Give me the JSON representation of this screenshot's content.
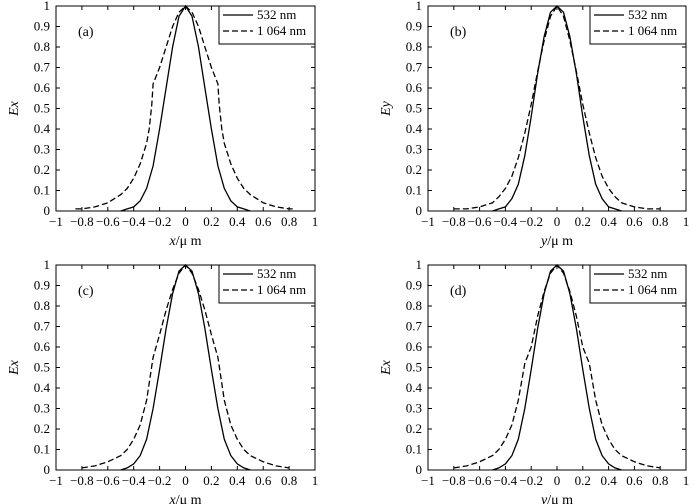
{
  "chart_data": [
    {
      "type": "line",
      "panel_label": "(a)",
      "xlabel_var": "x",
      "xlabel_unit": "/μ m",
      "ylabel": "Ex",
      "xlim": [
        -1,
        1
      ],
      "ylim": [
        0,
        1
      ],
      "xticks": [
        "−1",
        "−0.8",
        "−0.6",
        "−0.4",
        "−0.2",
        "0",
        "0.2",
        "0.4",
        "0.6",
        "0.8",
        "1"
      ],
      "yticks": [
        "0",
        "0.1",
        "0.2",
        "0.3",
        "0.4",
        "0.5",
        "0.6",
        "0.7",
        "0.8",
        "0.9",
        "1"
      ],
      "grid": false,
      "legend_position": "top-right",
      "series": [
        {
          "name": "532 nm",
          "style": "solid",
          "x": [
            -0.5,
            -0.45,
            -0.4,
            -0.35,
            -0.3,
            -0.25,
            -0.2,
            -0.15,
            -0.1,
            -0.05,
            0,
            0.05,
            0.1,
            0.15,
            0.2,
            0.25,
            0.3,
            0.35,
            0.4,
            0.45,
            0.5
          ],
          "y": [
            0.0,
            0.01,
            0.02,
            0.05,
            0.11,
            0.22,
            0.4,
            0.6,
            0.8,
            0.95,
            1.0,
            0.95,
            0.8,
            0.6,
            0.4,
            0.22,
            0.11,
            0.05,
            0.02,
            0.01,
            0.0
          ]
        },
        {
          "name": "1 064 nm",
          "style": "dashed",
          "x": [
            -0.85,
            -0.8,
            -0.7,
            -0.6,
            -0.5,
            -0.45,
            -0.4,
            -0.35,
            -0.3,
            -0.28,
            -0.26,
            -0.25,
            -0.2,
            -0.15,
            -0.1,
            -0.05,
            0,
            0.05,
            0.1,
            0.15,
            0.2,
            0.25,
            0.26,
            0.28,
            0.3,
            0.35,
            0.4,
            0.45,
            0.5,
            0.6,
            0.7,
            0.8,
            0.85
          ],
          "y": [
            0.01,
            0.01,
            0.02,
            0.04,
            0.08,
            0.11,
            0.16,
            0.23,
            0.33,
            0.4,
            0.52,
            0.62,
            0.7,
            0.8,
            0.9,
            0.97,
            1.0,
            0.97,
            0.9,
            0.8,
            0.7,
            0.62,
            0.52,
            0.4,
            0.33,
            0.23,
            0.16,
            0.11,
            0.08,
            0.04,
            0.02,
            0.01,
            0.01
          ]
        }
      ]
    },
    {
      "type": "line",
      "panel_label": "(b)",
      "xlabel_var": "y",
      "xlabel_unit": "/μ m",
      "ylabel": "Ey",
      "xlim": [
        -1,
        1
      ],
      "ylim": [
        0,
        1
      ],
      "xticks": [
        "−1",
        "−0.8",
        "−0.6",
        "−0.4",
        "−0.2",
        "0",
        "0.2",
        "0.4",
        "0.6",
        "0.8",
        "1"
      ],
      "yticks": [
        "0",
        "0.1",
        "0.2",
        "0.3",
        "0.4",
        "0.5",
        "0.6",
        "0.7",
        "0.8",
        "0.9",
        "1"
      ],
      "grid": false,
      "legend_position": "top-right",
      "series": [
        {
          "name": "532 nm",
          "style": "solid",
          "x": [
            -0.5,
            -0.45,
            -0.4,
            -0.35,
            -0.3,
            -0.25,
            -0.2,
            -0.15,
            -0.1,
            -0.05,
            0,
            0.05,
            0.1,
            0.15,
            0.2,
            0.25,
            0.3,
            0.35,
            0.4,
            0.45,
            0.5
          ],
          "y": [
            0.0,
            0.01,
            0.02,
            0.06,
            0.13,
            0.27,
            0.46,
            0.67,
            0.85,
            0.97,
            1.0,
            0.97,
            0.85,
            0.67,
            0.46,
            0.27,
            0.13,
            0.06,
            0.02,
            0.01,
            0.0
          ]
        },
        {
          "name": "1 064 nm",
          "style": "dashed",
          "x": [
            -0.8,
            -0.7,
            -0.6,
            -0.5,
            -0.45,
            -0.4,
            -0.35,
            -0.3,
            -0.25,
            -0.2,
            -0.15,
            -0.1,
            -0.05,
            0,
            0.05,
            0.1,
            0.15,
            0.2,
            0.25,
            0.3,
            0.35,
            0.4,
            0.45,
            0.5,
            0.6,
            0.7,
            0.8
          ],
          "y": [
            0.01,
            0.01,
            0.02,
            0.04,
            0.07,
            0.11,
            0.17,
            0.26,
            0.38,
            0.52,
            0.68,
            0.83,
            0.95,
            1.0,
            0.95,
            0.83,
            0.68,
            0.52,
            0.38,
            0.26,
            0.17,
            0.11,
            0.07,
            0.04,
            0.02,
            0.01,
            0.01
          ]
        }
      ]
    },
    {
      "type": "line",
      "panel_label": "(c)",
      "xlabel_var": "x",
      "xlabel_unit": "/μ m",
      "ylabel": "Ex",
      "xlim": [
        -1,
        1
      ],
      "ylim": [
        0,
        1
      ],
      "xticks": [
        "−1",
        "−0.8",
        "−0.6",
        "−0.4",
        "−0.2",
        "0",
        "0.2",
        "0.4",
        "0.6",
        "0.8",
        "1"
      ],
      "yticks": [
        "0",
        "0.1",
        "0.2",
        "0.3",
        "0.4",
        "0.5",
        "0.6",
        "0.7",
        "0.8",
        "0.9",
        "1"
      ],
      "grid": false,
      "legend_position": "top-right",
      "series": [
        {
          "name": "532 nm",
          "style": "solid",
          "x": [
            -0.5,
            -0.45,
            -0.4,
            -0.35,
            -0.3,
            -0.25,
            -0.2,
            -0.15,
            -0.1,
            -0.05,
            0,
            0.05,
            0.1,
            0.15,
            0.2,
            0.25,
            0.3,
            0.35,
            0.4,
            0.45,
            0.5
          ],
          "y": [
            0.0,
            0.01,
            0.03,
            0.07,
            0.15,
            0.3,
            0.49,
            0.69,
            0.86,
            0.97,
            1.0,
            0.97,
            0.86,
            0.69,
            0.49,
            0.3,
            0.15,
            0.07,
            0.03,
            0.01,
            0.0
          ]
        },
        {
          "name": "1 064 nm",
          "style": "dashed",
          "x": [
            -0.8,
            -0.7,
            -0.6,
            -0.5,
            -0.45,
            -0.4,
            -0.35,
            -0.3,
            -0.25,
            -0.2,
            -0.15,
            -0.1,
            -0.05,
            0,
            0.05,
            0.1,
            0.15,
            0.2,
            0.25,
            0.3,
            0.35,
            0.4,
            0.45,
            0.5,
            0.6,
            0.7,
            0.8
          ],
          "y": [
            0.01,
            0.02,
            0.04,
            0.07,
            0.1,
            0.15,
            0.22,
            0.34,
            0.55,
            0.66,
            0.78,
            0.88,
            0.96,
            1.0,
            0.96,
            0.88,
            0.78,
            0.66,
            0.55,
            0.34,
            0.22,
            0.15,
            0.1,
            0.07,
            0.04,
            0.02,
            0.01
          ]
        }
      ]
    },
    {
      "type": "line",
      "panel_label": "(d)",
      "xlabel_var": "y",
      "xlabel_unit": "/μ m",
      "ylabel": "Ex",
      "xlim": [
        -1,
        1
      ],
      "ylim": [
        0,
        1
      ],
      "xticks": [
        "−1",
        "−0.8",
        "−0.6",
        "−0.4",
        "−0.2",
        "0",
        "0.2",
        "0.4",
        "0.6",
        "0.8",
        "1"
      ],
      "yticks": [
        "0",
        "0.1",
        "0.2",
        "0.3",
        "0.4",
        "0.5",
        "0.6",
        "0.7",
        "0.8",
        "0.9",
        "1"
      ],
      "grid": false,
      "legend_position": "top-right",
      "series": [
        {
          "name": "532 nm",
          "style": "solid",
          "x": [
            -0.5,
            -0.45,
            -0.4,
            -0.35,
            -0.3,
            -0.25,
            -0.2,
            -0.15,
            -0.1,
            -0.05,
            0,
            0.05,
            0.1,
            0.15,
            0.2,
            0.25,
            0.3,
            0.35,
            0.4,
            0.45,
            0.5
          ],
          "y": [
            0.0,
            0.01,
            0.03,
            0.07,
            0.15,
            0.3,
            0.49,
            0.69,
            0.86,
            0.97,
            1.0,
            0.97,
            0.86,
            0.69,
            0.49,
            0.3,
            0.15,
            0.07,
            0.03,
            0.01,
            0.0
          ]
        },
        {
          "name": "1 064 nm",
          "style": "dashed",
          "x": [
            -0.8,
            -0.7,
            -0.6,
            -0.5,
            -0.45,
            -0.4,
            -0.35,
            -0.3,
            -0.25,
            -0.2,
            -0.15,
            -0.1,
            -0.05,
            0,
            0.05,
            0.1,
            0.15,
            0.2,
            0.25,
            0.3,
            0.35,
            0.4,
            0.45,
            0.5,
            0.6,
            0.7,
            0.8
          ],
          "y": [
            0.01,
            0.02,
            0.04,
            0.07,
            0.1,
            0.15,
            0.22,
            0.34,
            0.52,
            0.6,
            0.75,
            0.87,
            0.96,
            1.0,
            0.96,
            0.87,
            0.75,
            0.6,
            0.52,
            0.34,
            0.22,
            0.15,
            0.1,
            0.07,
            0.04,
            0.02,
            0.01
          ]
        }
      ]
    }
  ]
}
